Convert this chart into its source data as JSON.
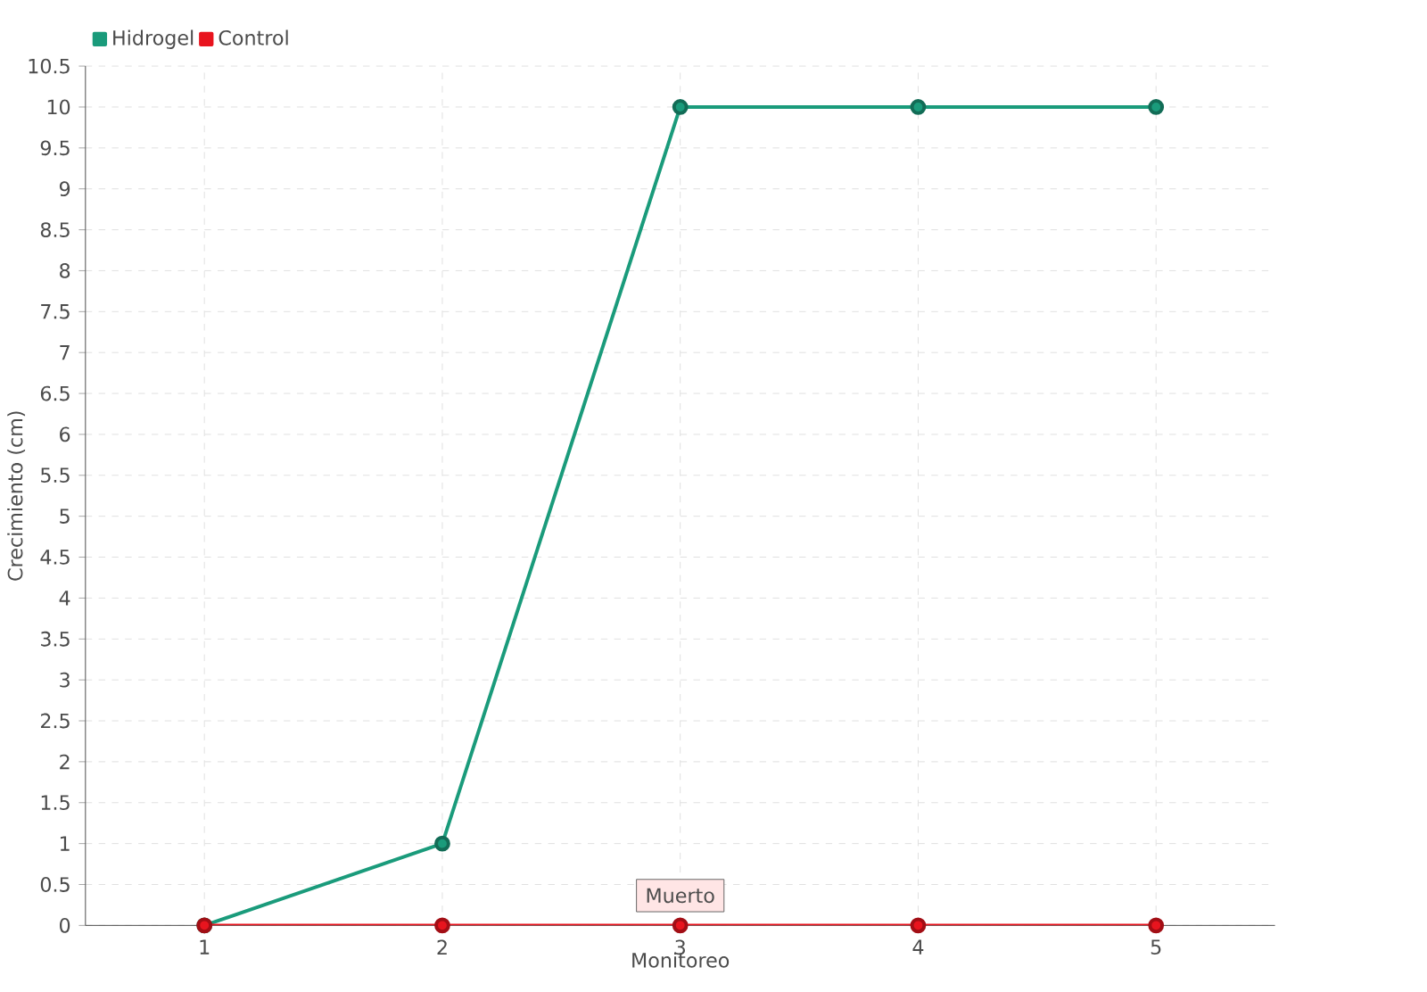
{
  "chart_data": {
    "type": "line",
    "xlabel": "Monitoreo",
    "ylabel": "Crecimiento (cm)",
    "categories": [
      "1",
      "2",
      "3",
      "4",
      "5"
    ],
    "series": [
      {
        "name": "Hidrogel",
        "color": "#1a9b7b",
        "values": [
          0,
          1,
          10,
          10,
          10
        ]
      },
      {
        "name": "Control",
        "color": "#e8141e",
        "values": [
          0,
          0,
          0,
          0,
          0
        ]
      }
    ],
    "ylim": [
      0,
      10.5
    ],
    "yticks": [
      0,
      0.5,
      1,
      1.5,
      2,
      2.5,
      3,
      3.5,
      4,
      4.5,
      5,
      5.5,
      6,
      6.5,
      7,
      7.5,
      8,
      8.5,
      9,
      9.5,
      10,
      10.5
    ],
    "grid": true,
    "legend": "top left",
    "marker": "circle",
    "line_style": "solid",
    "annotations": [
      {
        "text": "Muerto",
        "x": "3",
        "y": 0
      }
    ]
  }
}
